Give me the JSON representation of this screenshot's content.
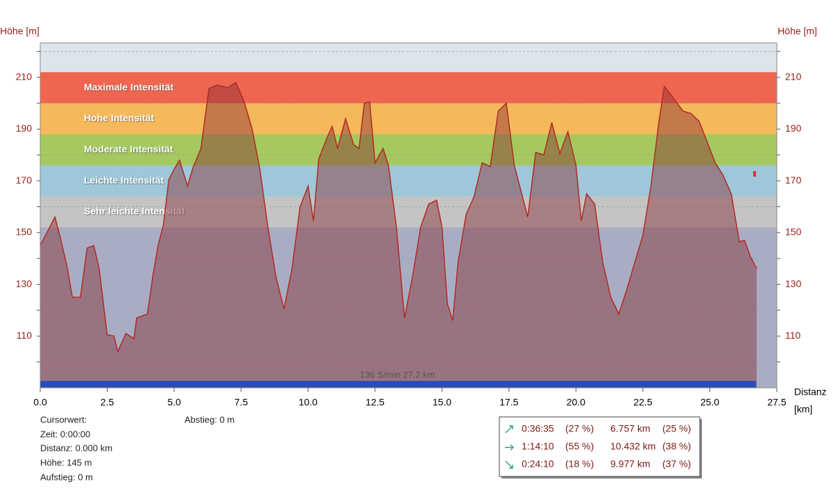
{
  "chart_data": {
    "type": "area",
    "y_label": "Höhe  [m]",
    "x_label": [
      "Distanz",
      "[km]"
    ],
    "x": [
      0,
      0.25,
      0.55,
      0.75,
      1.0,
      1.2,
      1.5,
      1.75,
      2.0,
      2.2,
      2.5,
      2.75,
      2.9,
      3.0,
      3.2,
      3.5,
      3.6,
      4.0,
      4.2,
      4.4,
      4.6,
      4.8,
      5.0,
      5.2,
      5.5,
      5.7,
      6.0,
      6.3,
      6.6,
      7.0,
      7.3,
      7.6,
      7.9,
      8.2,
      8.5,
      8.8,
      9.1,
      9.4,
      9.7,
      10.0,
      10.2,
      10.4,
      10.7,
      10.9,
      11.1,
      11.4,
      11.7,
      11.9,
      12.1,
      12.3,
      12.5,
      12.8,
      13.0,
      13.3,
      13.6,
      13.9,
      14.2,
      14.5,
      14.8,
      15.0,
      15.2,
      15.4,
      15.6,
      15.9,
      16.2,
      16.5,
      16.8,
      17.1,
      17.4,
      17.7,
      18.0,
      18.2,
      18.5,
      18.8,
      19.1,
      19.4,
      19.7,
      20.0,
      20.2,
      20.4,
      20.7,
      21.0,
      21.3,
      21.6,
      21.9,
      22.2,
      22.5,
      22.8,
      23.1,
      23.3,
      23.6,
      24.0,
      24.3,
      24.6,
      24.9,
      25.2,
      25.5,
      25.8,
      26.1,
      26.3,
      26.5,
      26.75
    ],
    "values": [
      145,
      150,
      156,
      148,
      137,
      125,
      125,
      144,
      145,
      136,
      110.5,
      110,
      104,
      106.5,
      111,
      109,
      117,
      118.5,
      133,
      145,
      153,
      170.5,
      174.5,
      178,
      168,
      175,
      182.5,
      205.7,
      207,
      206,
      208,
      201,
      190.5,
      174.5,
      152,
      133,
      120.5,
      136,
      160,
      168,
      154.5,
      178.5,
      186.5,
      191,
      182.5,
      194,
      184,
      182.5,
      200,
      200.5,
      177,
      182.5,
      176,
      152,
      117,
      133,
      152,
      161,
      162.5,
      152,
      122.5,
      116,
      138.5,
      157,
      164,
      177,
      175.5,
      197,
      200,
      176,
      164,
      156,
      181,
      180,
      192.5,
      180.5,
      189,
      176,
      154.5,
      165,
      161,
      138.5,
      125,
      118.5,
      128,
      138.5,
      149,
      168,
      193,
      206.5,
      202.5,
      197,
      196,
      193,
      185,
      177,
      172,
      165,
      146.5,
      147,
      141,
      136
    ],
    "color": "#b02a20",
    "xlim": [
      0,
      27.5
    ],
    "xticks": [
      {
        "value": 0,
        "label": "0.0"
      },
      2.5,
      {
        "value": 5,
        "label": "5.0"
      },
      7.5,
      {
        "value": 10,
        "label": "10.0"
      },
      12.5,
      {
        "value": 15,
        "label": "15.0"
      },
      17.5,
      {
        "value": 20,
        "label": "20.0"
      },
      22.5,
      {
        "value": 25,
        "label": "25.0"
      },
      27.5
    ],
    "ylim": [
      90,
      223.3
    ],
    "yticks": [
      110,
      130,
      150,
      170,
      190,
      210
    ],
    "ygrid": [
      100,
      120,
      140,
      160,
      180,
      200,
      220
    ],
    "bands": [
      {
        "name": "Maximale Intensität",
        "from": 200,
        "to": 212,
        "color": "#ee6650"
      },
      {
        "name": "Hohe Intensität",
        "from": 188,
        "to": 200,
        "color": "#f5b95c"
      },
      {
        "name": "Moderate Intensität",
        "from": 176,
        "to": 188,
        "color": "#a5c95e"
      },
      {
        "name": "Leichte Intensität",
        "from": 164,
        "to": 176,
        "color": "#9ec8d9"
      },
      {
        "name": "Sehr leichte Intensität",
        "from": 152,
        "to": 164,
        "color": "#c4c4c4"
      }
    ],
    "annotation": "136 S/min 27.2 km"
  },
  "info": {
    "title": "Cursorwert:",
    "zeit": "Zeit: 0:00:00",
    "distanz": "Distanz: 0.000 km",
    "hoehe": "Höhe:  145 m",
    "aufstieg": "Aufstieg: 0 m",
    "abstieg": "Abstieg: 0 m"
  },
  "stats": [
    [
      "0:36:35",
      "(27 %)",
      "6.757 km",
      "(25 %)"
    ],
    [
      "1:14:10",
      "(55 %)",
      "10.432 km",
      "(38 %)"
    ],
    [
      "0:24:10",
      "(18 %)",
      "9.977 km",
      "(37 %)"
    ]
  ]
}
